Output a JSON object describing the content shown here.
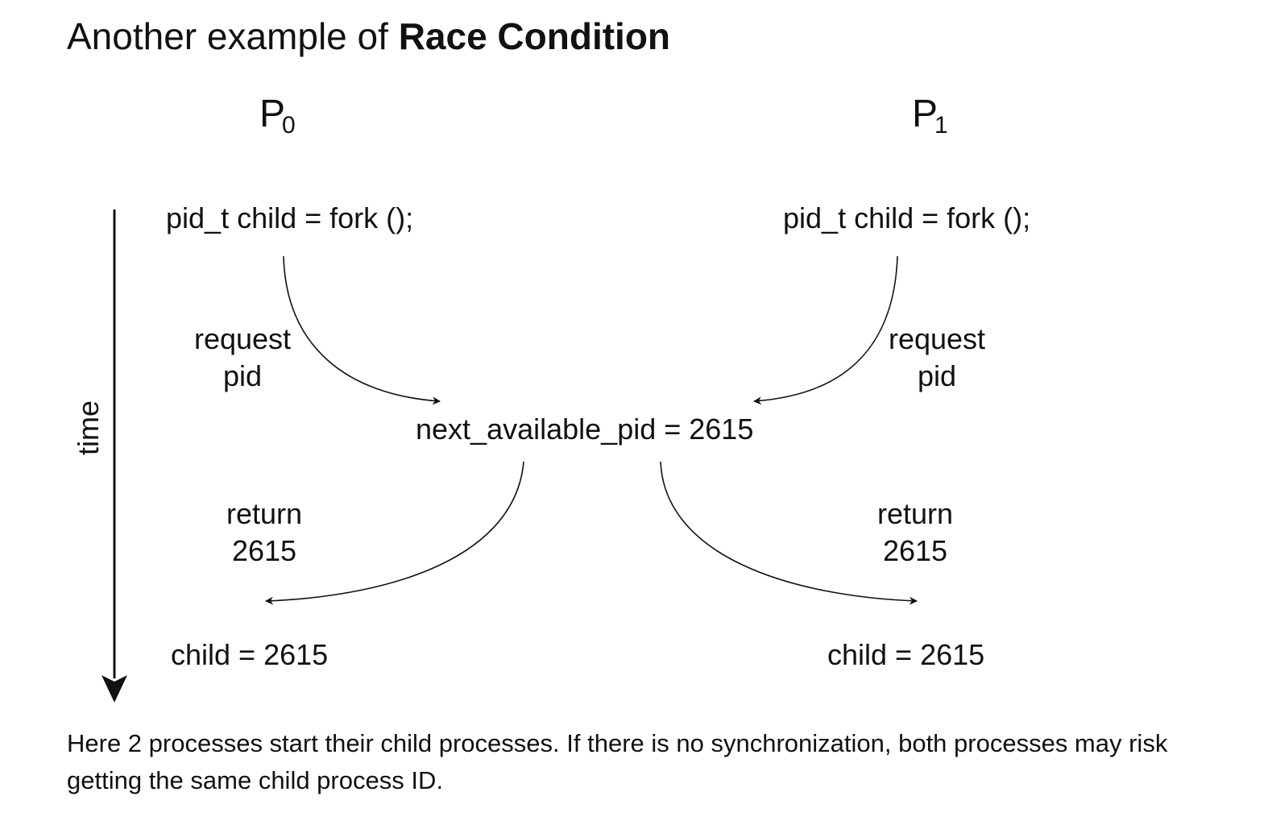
{
  "title": {
    "prefix": "Another example of ",
    "emphasis": "Race Condition"
  },
  "processes": [
    {
      "name": "P",
      "sub": "0"
    },
    {
      "name": "P",
      "sub": "1"
    }
  ],
  "p0": {
    "fork": "pid_t child = fork ();",
    "request": [
      "request",
      "pid"
    ],
    "return": [
      "return",
      "2615"
    ],
    "result": "child = 2615"
  },
  "p1": {
    "fork": "pid_t child = fork ();",
    "request": [
      "request",
      "pid"
    ],
    "return": [
      "return",
      "2615"
    ],
    "result": "child = 2615"
  },
  "center": "next_available_pid = 2615",
  "axis_label": "time",
  "caption": "Here 2 processes start their child processes. If there is no synchronization, both processes may risk getting the same child process ID."
}
